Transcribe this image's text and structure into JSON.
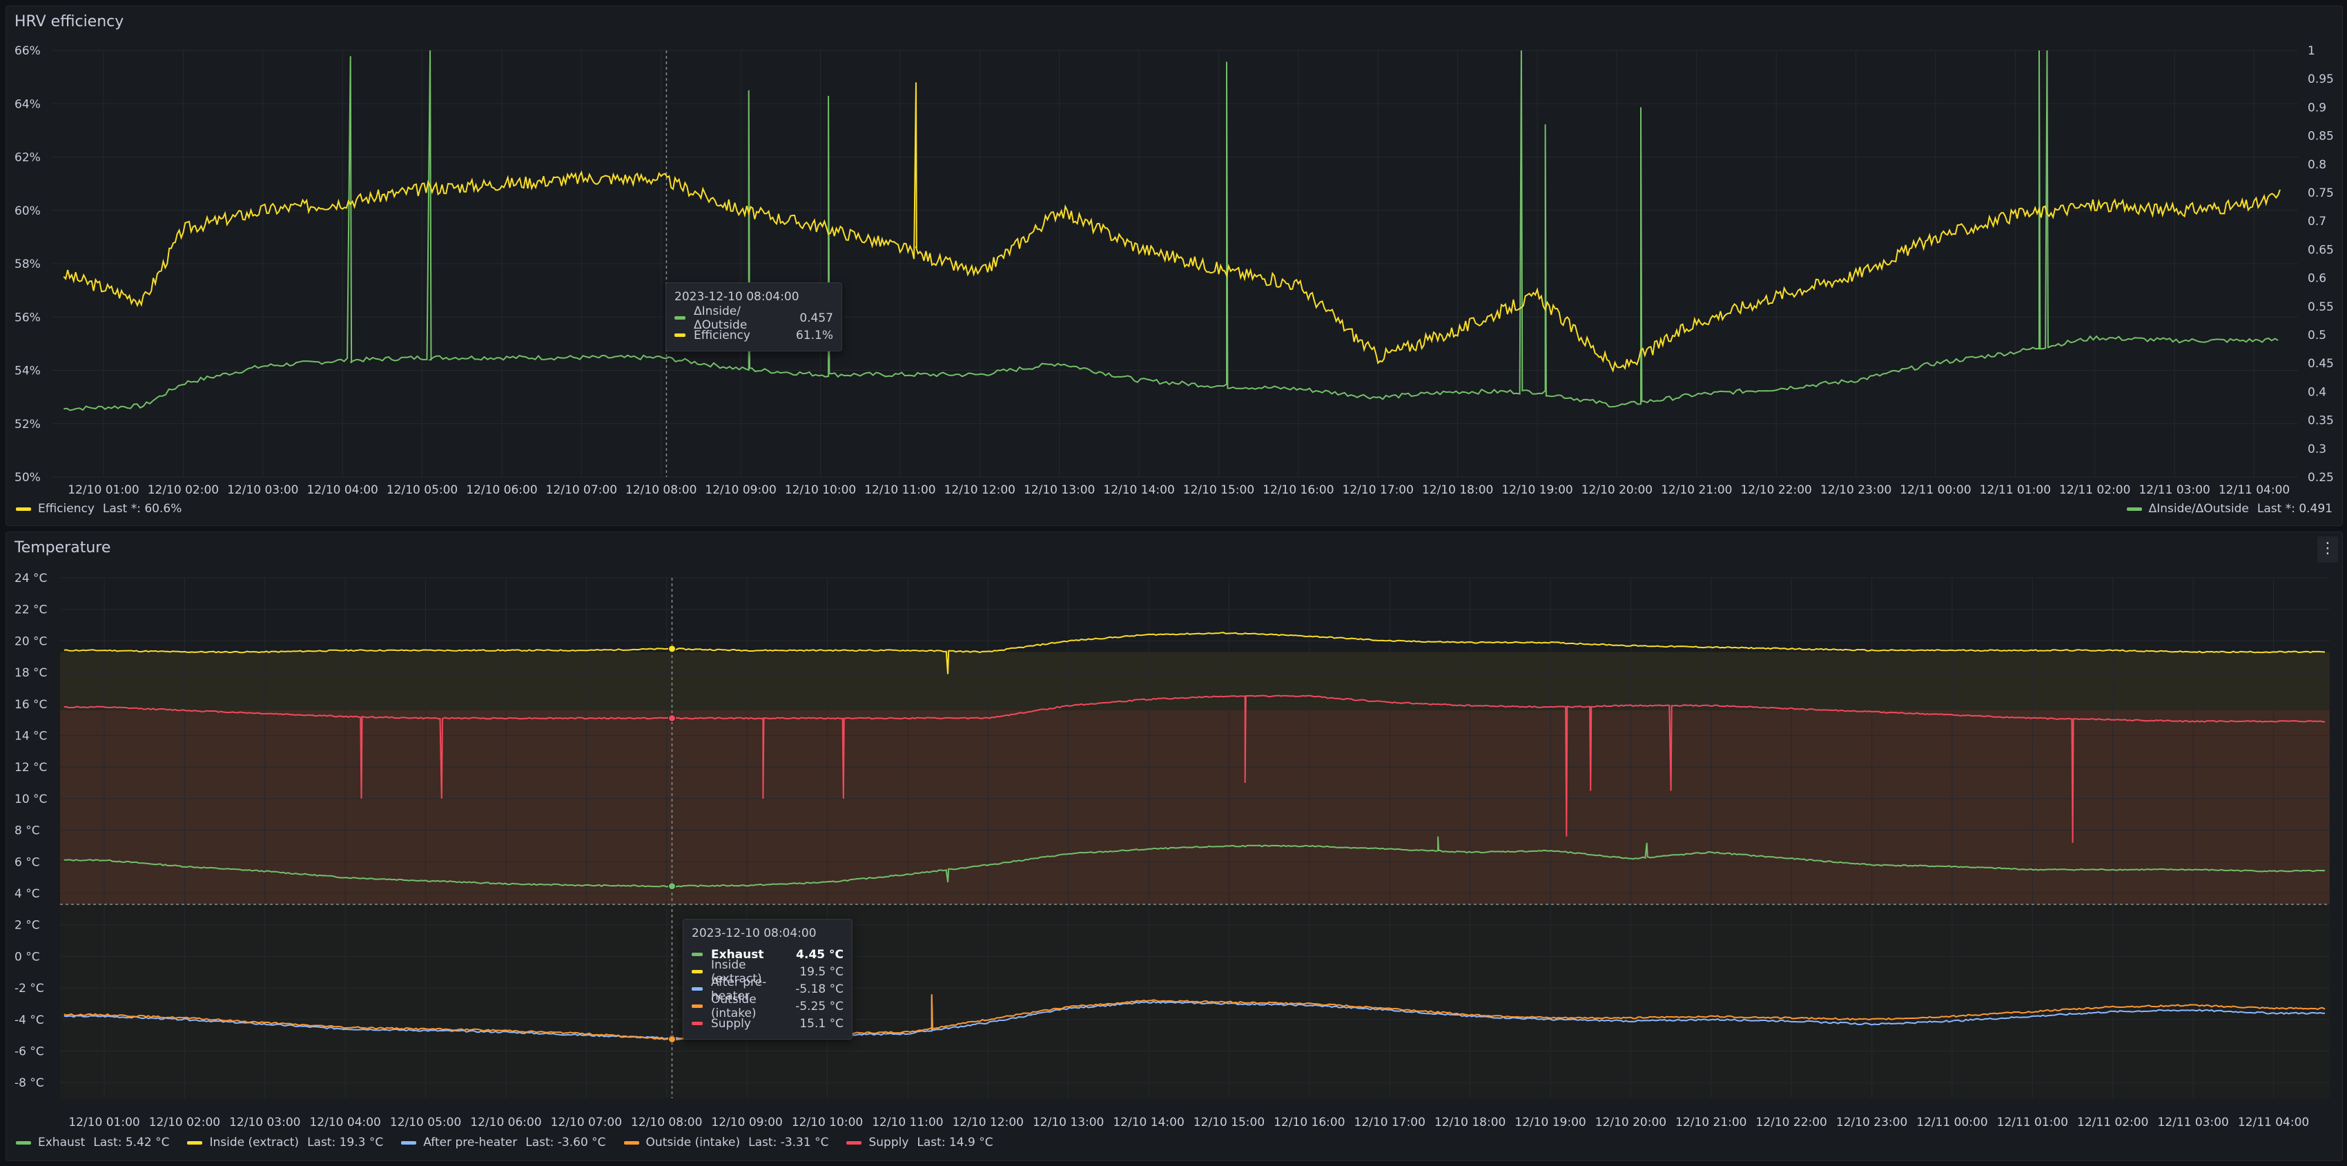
{
  "colors": {
    "efficiency": "#fade2a",
    "delta": "#73bf69",
    "exhaust": "#73bf69",
    "inside": "#fade2a",
    "preheater": "#8ab8ff",
    "outside": "#ff9830",
    "supply": "#f2495c"
  },
  "time_ticks": [
    "12/10 01:00",
    "12/10 02:00",
    "12/10 03:00",
    "12/10 04:00",
    "12/10 05:00",
    "12/10 06:00",
    "12/10 07:00",
    "12/10 08:00",
    "12/10 09:00",
    "12/10 10:00",
    "12/10 11:00",
    "12/10 12:00",
    "12/10 13:00",
    "12/10 14:00",
    "12/10 15:00",
    "12/10 16:00",
    "12/10 17:00",
    "12/10 18:00",
    "12/10 19:00",
    "12/10 20:00",
    "12/10 21:00",
    "12/10 22:00",
    "12/10 23:00",
    "12/11 00:00",
    "12/11 01:00",
    "12/11 02:00",
    "12/11 03:00",
    "12/11 04:00"
  ],
  "panel1": {
    "title": "HRV efficiency",
    "tooltip": {
      "time": "2023-12-10 08:04:00",
      "rows": [
        {
          "name": "ΔInside/ΔOutside",
          "value": "0.457",
          "color": "#73bf69"
        },
        {
          "name": "Efficiency",
          "value": "61.1%",
          "color": "#fade2a"
        }
      ]
    },
    "legend_left": {
      "name": "Efficiency",
      "last": "Last *: 60.6%"
    },
    "legend_right": {
      "name": "ΔInside/ΔOutside",
      "last": "Last *: 0.491"
    }
  },
  "panel2": {
    "title": "Temperature",
    "menu_icon": "kebab-menu-icon",
    "tooltip": {
      "time": "2023-12-10 08:04:00",
      "rows": [
        {
          "name": "Exhaust",
          "value": "4.45 °C",
          "color": "#73bf69",
          "bold": true
        },
        {
          "name": "Inside (extract)",
          "value": "19.5 °C",
          "color": "#fade2a"
        },
        {
          "name": "After pre-heater",
          "value": "-5.18 °C",
          "color": "#8ab8ff"
        },
        {
          "name": "Outside (intake)",
          "value": "-5.25 °C",
          "color": "#ff9830"
        },
        {
          "name": "Supply",
          "value": "15.1 °C",
          "color": "#f2495c"
        }
      ]
    },
    "legend": [
      {
        "name": "Exhaust",
        "last": "Last: 5.42 °C",
        "color": "#73bf69"
      },
      {
        "name": "Inside (extract)",
        "last": "Last: 19.3 °C",
        "color": "#fade2a"
      },
      {
        "name": "After pre-heater",
        "last": "Last: -3.60 °C",
        "color": "#8ab8ff"
      },
      {
        "name": "Outside (intake)",
        "last": "Last: -3.31 °C",
        "color": "#ff9830"
      },
      {
        "name": "Supply",
        "last": "Last: 14.9 °C",
        "color": "#f2495c"
      }
    ]
  },
  "chart_data": [
    {
      "type": "line",
      "x": [
        "12/10 00:30",
        "12/10 01:30",
        "12/10 02:00",
        "12/10 03:00",
        "12/10 04:00",
        "12/10 05:00",
        "12/10 06:00",
        "12/10 07:00",
        "12/10 08:00",
        "12/10 09:00",
        "12/10 10:00",
        "12/10 11:00",
        "12/10 12:00",
        "12/10 13:00",
        "12/10 14:00",
        "12/10 15:00",
        "12/10 16:00",
        "12/10 17:00",
        "12/10 18:00",
        "12/10 19:00",
        "12/10 20:00",
        "12/10 21:00",
        "12/10 22:00",
        "12/10 23:00",
        "12/11 00:00",
        "12/11 01:00",
        "12/11 02:00",
        "12/11 03:00",
        "12/11 04:00",
        "12/11 04:20"
      ],
      "y_left": {
        "ticks": [
          "50%",
          "52%",
          "54%",
          "56%",
          "58%",
          "60%",
          "62%",
          "64%",
          "66%"
        ],
        "ylim": [
          50,
          66
        ]
      },
      "y_right": {
        "ticks": [
          "0.25",
          "0.3",
          "0.35",
          "0.4",
          "0.45",
          "0.5",
          "0.55",
          "0.6",
          "0.65",
          "0.7",
          "0.75",
          "0.8",
          "0.85",
          "0.9",
          "0.95",
          "1"
        ],
        "ylim": [
          0.25,
          1
        ]
      },
      "series": [
        {
          "name": "Efficiency",
          "axis": "left",
          "values": [
            57.6,
            56.6,
            59.3,
            60.0,
            60.3,
            60.8,
            61.0,
            61.2,
            61.2,
            60.0,
            59.4,
            58.6,
            57.6,
            60.0,
            58.6,
            57.8,
            57.2,
            54.5,
            55.5,
            56.8,
            54.0,
            55.8,
            56.8,
            57.6,
            59.0,
            59.8,
            60.2,
            60.0,
            60.2,
            60.6
          ]
        },
        {
          "name": "ΔInside/ΔOutside",
          "axis": "right",
          "values": [
            0.37,
            0.375,
            0.415,
            0.445,
            0.455,
            0.46,
            0.46,
            0.46,
            0.46,
            0.44,
            0.43,
            0.43,
            0.43,
            0.45,
            0.42,
            0.41,
            0.405,
            0.39,
            0.4,
            0.4,
            0.375,
            0.395,
            0.405,
            0.42,
            0.45,
            0.47,
            0.495,
            0.49,
            0.49,
            0.491
          ]
        }
      ],
      "legend": "bottom"
    },
    {
      "type": "area",
      "x": [
        "12/10 00:30",
        "12/10 01:00",
        "12/10 02:00",
        "12/10 03:00",
        "12/10 04:00",
        "12/10 05:00",
        "12/10 06:00",
        "12/10 07:00",
        "12/10 08:00",
        "12/10 09:00",
        "12/10 10:00",
        "12/10 11:00",
        "12/10 12:00",
        "12/10 13:00",
        "12/10 14:00",
        "12/10 15:00",
        "12/10 16:00",
        "12/10 17:00",
        "12/10 18:00",
        "12/10 19:00",
        "12/10 20:00",
        "12/10 21:00",
        "12/10 22:00",
        "12/10 23:00",
        "12/11 00:00",
        "12/11 01:00",
        "12/11 02:00",
        "12/11 03:00",
        "12/11 04:00",
        "12/11 04:40"
      ],
      "y_ticks": [
        "-8 °C",
        "-6 °C",
        "-4 °C",
        "-2 °C",
        "0 °C",
        "2 °C",
        "4 °C",
        "6 °C",
        "8 °C",
        "10 °C",
        "12 °C",
        "14 °C",
        "16 °C",
        "18 °C",
        "20 °C",
        "22 °C",
        "24 °C"
      ],
      "ylim": [
        -9,
        24
      ],
      "threshold": 3.3,
      "series": [
        {
          "name": "Inside (extract)",
          "values": [
            19.4,
            19.4,
            19.3,
            19.3,
            19.4,
            19.4,
            19.4,
            19.4,
            19.5,
            19.4,
            19.4,
            19.4,
            19.3,
            20.0,
            20.4,
            20.5,
            20.3,
            20.0,
            19.9,
            19.9,
            19.7,
            19.6,
            19.5,
            19.4,
            19.4,
            19.4,
            19.4,
            19.3,
            19.3,
            19.3
          ]
        },
        {
          "name": "Supply",
          "values": [
            15.8,
            15.8,
            15.6,
            15.4,
            15.2,
            15.1,
            15.1,
            15.1,
            15.1,
            15.1,
            15.1,
            15.1,
            15.1,
            15.9,
            16.3,
            16.5,
            16.5,
            16.1,
            15.9,
            15.8,
            15.9,
            15.9,
            15.7,
            15.5,
            15.3,
            15.1,
            15.0,
            14.9,
            14.9,
            14.9
          ]
        },
        {
          "name": "Exhaust",
          "values": [
            6.1,
            6.1,
            5.7,
            5.4,
            5.0,
            4.8,
            4.6,
            4.5,
            4.45,
            4.5,
            4.7,
            5.2,
            5.8,
            6.5,
            6.8,
            7.0,
            7.0,
            6.8,
            6.6,
            6.7,
            6.2,
            6.6,
            6.2,
            5.8,
            5.7,
            5.5,
            5.5,
            5.5,
            5.4,
            5.42
          ]
        },
        {
          "name": "After pre-heater",
          "values": [
            -3.8,
            -3.8,
            -4.0,
            -4.3,
            -4.6,
            -4.7,
            -4.8,
            -5.0,
            -5.18,
            -5.1,
            -5.0,
            -4.9,
            -4.2,
            -3.3,
            -2.9,
            -3.0,
            -3.1,
            -3.4,
            -3.8,
            -4.0,
            -4.1,
            -4.0,
            -4.1,
            -4.3,
            -4.1,
            -3.8,
            -3.5,
            -3.4,
            -3.6,
            -3.6
          ]
        },
        {
          "name": "Outside (intake)",
          "values": [
            -3.7,
            -3.7,
            -3.9,
            -4.2,
            -4.5,
            -4.6,
            -4.7,
            -4.9,
            -5.25,
            -5.0,
            -4.9,
            -4.8,
            -4.0,
            -3.2,
            -2.8,
            -2.9,
            -3.0,
            -3.3,
            -3.7,
            -3.9,
            -3.9,
            -3.8,
            -3.9,
            -4.0,
            -3.8,
            -3.5,
            -3.2,
            -3.1,
            -3.3,
            -3.31
          ]
        }
      ],
      "legend": "bottom"
    }
  ]
}
